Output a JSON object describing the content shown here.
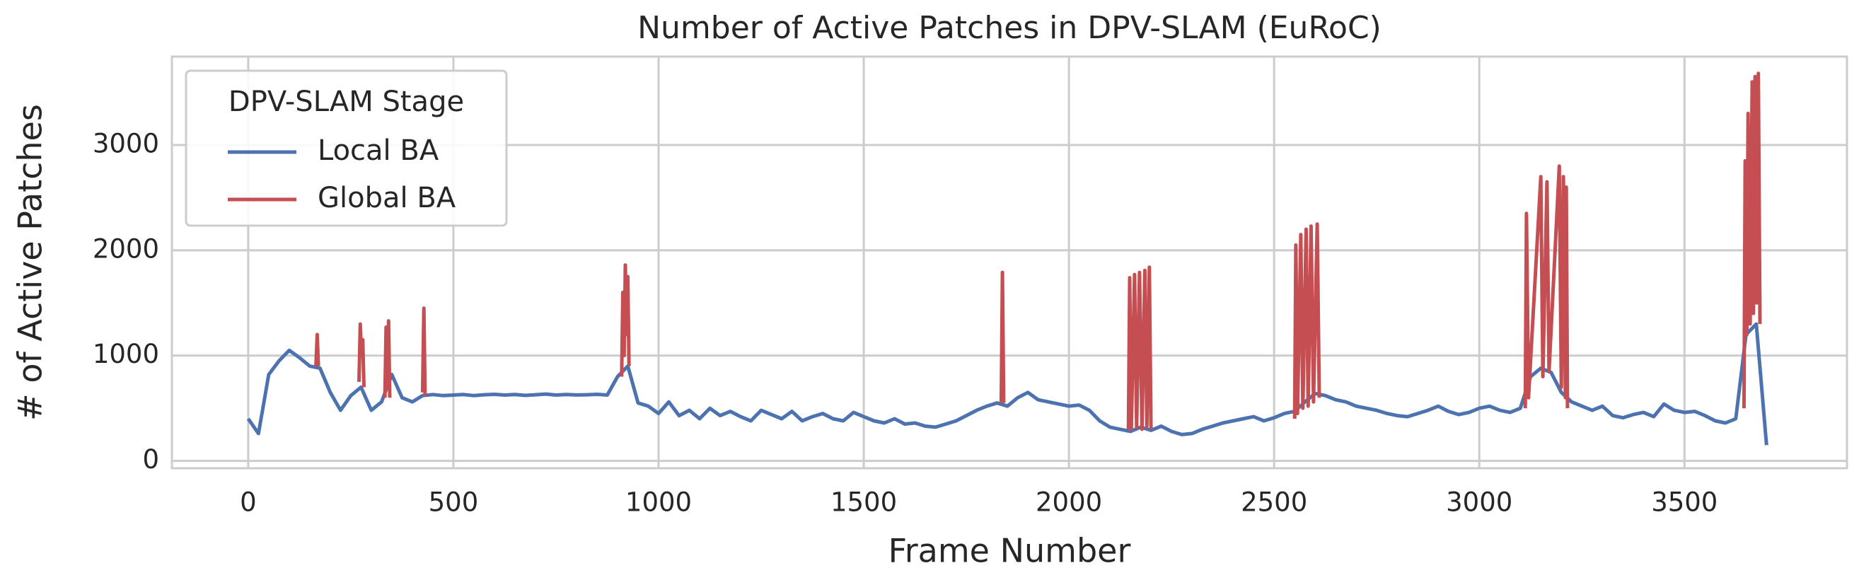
{
  "chart_data": {
    "type": "line",
    "title": "Number of Active Patches in DPV-SLAM (EuRoC)",
    "x_label": "Frame Number",
    "y_label": "# of Active Patches",
    "legend_title": "DPV-SLAM Stage",
    "legend_position": "upper left",
    "grid": true,
    "xlim": [
      -186,
      3896
    ],
    "ylim": [
      -70,
      3840
    ],
    "xticks": [
      0,
      500,
      1000,
      1500,
      2000,
      2500,
      3000,
      3500
    ],
    "yticks": [
      0,
      1000,
      2000,
      3000
    ],
    "series": [
      {
        "name": "Local BA",
        "color": "#4c72b0",
        "x": [
          0,
          25,
          50,
          75,
          100,
          125,
          150,
          175,
          200,
          225,
          250,
          275,
          300,
          325,
          350,
          375,
          400,
          425,
          450,
          475,
          500,
          525,
          550,
          575,
          600,
          625,
          650,
          675,
          700,
          725,
          750,
          775,
          800,
          825,
          850,
          875,
          900,
          925,
          950,
          975,
          1000,
          1025,
          1050,
          1075,
          1100,
          1125,
          1150,
          1175,
          1200,
          1225,
          1250,
          1275,
          1300,
          1325,
          1350,
          1375,
          1400,
          1425,
          1450,
          1475,
          1500,
          1525,
          1550,
          1575,
          1600,
          1625,
          1650,
          1675,
          1700,
          1725,
          1750,
          1775,
          1800,
          1825,
          1850,
          1875,
          1900,
          1925,
          1950,
          1975,
          2000,
          2025,
          2050,
          2075,
          2100,
          2125,
          2150,
          2175,
          2200,
          2225,
          2250,
          2275,
          2300,
          2325,
          2350,
          2375,
          2400,
          2425,
          2450,
          2475,
          2500,
          2525,
          2550,
          2575,
          2600,
          2625,
          2650,
          2675,
          2700,
          2725,
          2750,
          2775,
          2800,
          2825,
          2850,
          2875,
          2900,
          2925,
          2950,
          2975,
          3000,
          3025,
          3050,
          3075,
          3100,
          3125,
          3150,
          3175,
          3200,
          3225,
          3250,
          3275,
          3300,
          3325,
          3350,
          3375,
          3400,
          3425,
          3450,
          3475,
          3500,
          3525,
          3550,
          3575,
          3600,
          3625,
          3650,
          3675,
          3700
        ],
        "values": [
          400,
          260,
          820,
          950,
          1050,
          980,
          900,
          880,
          650,
          480,
          620,
          700,
          480,
          560,
          820,
          600,
          560,
          620,
          630,
          620,
          625,
          630,
          620,
          628,
          632,
          625,
          630,
          622,
          628,
          635,
          625,
          630,
          626,
          628,
          632,
          625,
          800,
          900,
          550,
          520,
          450,
          560,
          430,
          480,
          400,
          500,
          430,
          470,
          420,
          380,
          480,
          440,
          400,
          470,
          380,
          420,
          450,
          400,
          380,
          460,
          420,
          380,
          360,
          400,
          350,
          360,
          330,
          320,
          350,
          380,
          430,
          480,
          520,
          550,
          520,
          600,
          650,
          580,
          560,
          540,
          520,
          530,
          480,
          380,
          320,
          300,
          280,
          320,
          290,
          330,
          280,
          250,
          260,
          300,
          330,
          360,
          380,
          400,
          420,
          380,
          410,
          450,
          470,
          560,
          640,
          620,
          580,
          560,
          520,
          500,
          480,
          450,
          430,
          420,
          450,
          480,
          520,
          470,
          440,
          460,
          500,
          520,
          480,
          460,
          500,
          800,
          880,
          840,
          650,
          560,
          520,
          480,
          520,
          430,
          410,
          440,
          460,
          420,
          540,
          480,
          460,
          470,
          430,
          380,
          360,
          400,
          1200,
          1300,
          150
        ]
      },
      {
        "name": "Global BA",
        "color": "#c44e52",
        "x": [
          165,
          168,
          171,
          172,
          270,
          273,
          276,
          279,
          282,
          283,
          333,
          336,
          339,
          342,
          345,
          346,
          425,
          428,
          431,
          432,
          910,
          913,
          916,
          919,
          922,
          925,
          928,
          929,
          1835,
          1838,
          1841,
          1842,
          2145,
          2148,
          2152,
          2160,
          2165,
          2172,
          2178,
          2185,
          2190,
          2196,
          2200,
          2201,
          2550,
          2553,
          2557,
          2565,
          2570,
          2578,
          2583,
          2590,
          2596,
          2605,
          2610,
          2611,
          3112,
          3115,
          3120,
          3150,
          3155,
          3165,
          3170,
          3195,
          3200,
          3205,
          3210,
          3212,
          3215,
          3216,
          3645,
          3648,
          3652,
          3655,
          3660,
          3665,
          3668,
          3672,
          3676,
          3680,
          3684
        ],
        "values": [
          900,
          1200,
          900,
          null,
          750,
          1300,
          1000,
          1150,
          700,
          null,
          600,
          1270,
          700,
          1330,
          600,
          null,
          650,
          1450,
          620,
          null,
          800,
          1600,
          1000,
          1860,
          1200,
          1750,
          900,
          null,
          550,
          1790,
          550,
          null,
          300,
          1740,
          300,
          1770,
          320,
          1790,
          300,
          1810,
          330,
          1840,
          300,
          null,
          400,
          2050,
          450,
          2150,
          500,
          2200,
          520,
          2230,
          560,
          2250,
          600,
          null,
          500,
          2350,
          600,
          2700,
          800,
          2650,
          850,
          2800,
          700,
          2700,
          600,
          2600,
          500,
          null,
          500,
          2850,
          1200,
          3300,
          1300,
          3600,
          1400,
          3650,
          1500,
          3680,
          1300
        ]
      }
    ]
  }
}
